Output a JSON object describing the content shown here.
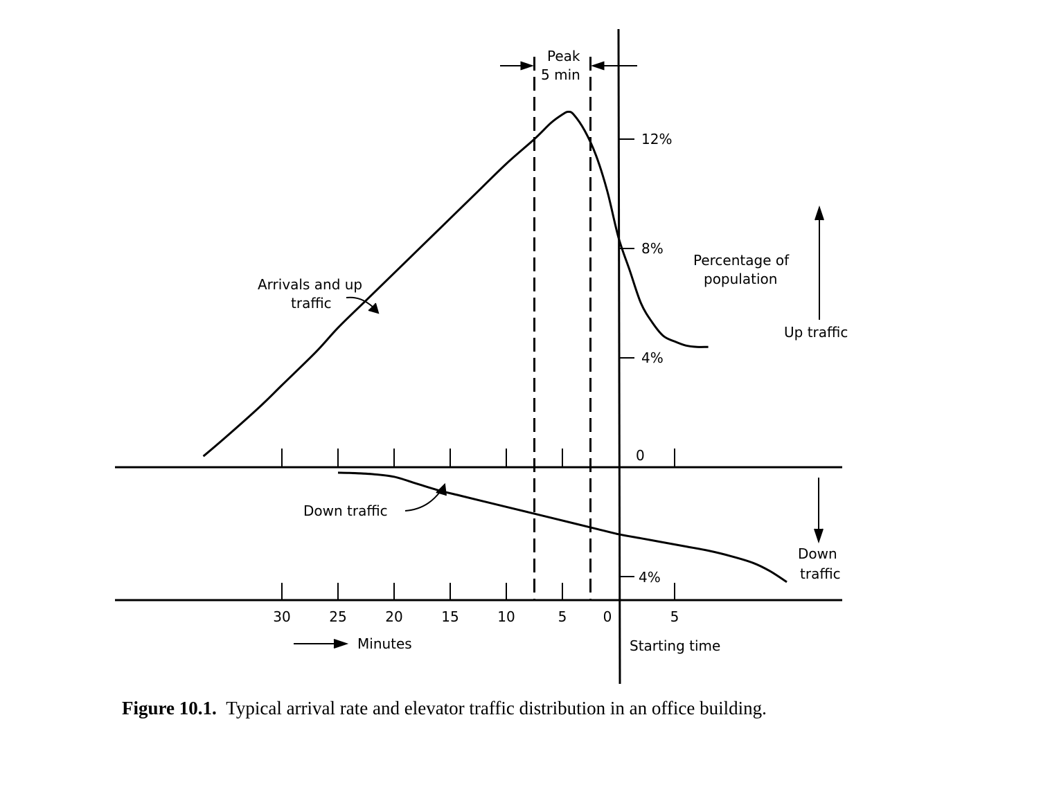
{
  "chart_data": {
    "type": "line",
    "x_tick_labels": [
      "30",
      "25",
      "20",
      "15",
      "10",
      "5",
      "0",
      "5"
    ],
    "x_label": "Minutes",
    "x_reference_label": "Starting time",
    "up_axis": {
      "tick_labels": [
        "0",
        "4%",
        "8%",
        "12%"
      ],
      "label": "Percentage of population",
      "direction_label": "Up traffic",
      "ylim": [
        0,
        12
      ]
    },
    "down_axis": {
      "tick_labels": [
        "4%"
      ],
      "direction_label": "Down traffic"
    },
    "peak_label": "Peak 5 min",
    "peak_window_minutes": [
      7.5,
      2.5
    ],
    "series": [
      {
        "name": "Arrivals and up traffic",
        "x": [
          37,
          35,
          32,
          30,
          27,
          25,
          22.5,
          20,
          17.5,
          15,
          12.5,
          10,
          7.5,
          6,
          5,
          4.5,
          4,
          3,
          2,
          1,
          0,
          -1,
          -2,
          -3,
          -4,
          -5,
          -6,
          -7,
          -8
        ],
        "y": [
          0.4,
          1.1,
          2.2,
          3.0,
          4.2,
          5.1,
          6.1,
          7.1,
          8.1,
          9.1,
          10.1,
          11.1,
          12.0,
          12.6,
          12.9,
          13.0,
          12.9,
          12.3,
          11.4,
          10.1,
          8.4,
          7.2,
          6.0,
          5.3,
          4.8,
          4.6,
          4.45,
          4.4,
          4.4
        ]
      },
      {
        "name": "Down traffic",
        "x": [
          25,
          24,
          22,
          20,
          18,
          16,
          14,
          12,
          10,
          8,
          6,
          4,
          2,
          0,
          -2,
          -4,
          -6,
          -8,
          -10,
          -12,
          -13.5,
          -15
        ],
        "y": [
          -0.2,
          -0.21,
          -0.25,
          -0.35,
          -0.6,
          -0.85,
          -1.05,
          -1.25,
          -1.45,
          -1.65,
          -1.85,
          -2.05,
          -2.25,
          -2.45,
          -2.6,
          -2.75,
          -2.9,
          -3.05,
          -3.25,
          -3.5,
          -3.8,
          -4.2
        ]
      }
    ]
  },
  "caption": {
    "label": "Figure 10.1.",
    "text": "Typical arrival rate and elevator traffic distribution in an office building."
  }
}
